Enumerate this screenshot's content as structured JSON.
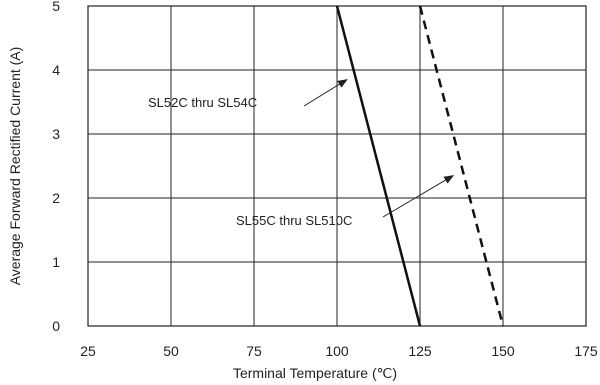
{
  "chart_data": {
    "type": "line",
    "title": "",
    "xlabel": "Terminal Temperature (℃)",
    "ylabel": "Average Forward Rectified Current (A)",
    "xlim": [
      25,
      175
    ],
    "ylim": [
      0,
      5
    ],
    "x_ticks": [
      "25",
      "50",
      "75",
      "100",
      "125",
      "150",
      "175"
    ],
    "y_ticks": [
      "0",
      "1",
      "2",
      "3",
      "4",
      "5"
    ],
    "grid": true,
    "series": [
      {
        "name": "SL52C thru SL54C",
        "style": "solid",
        "color": "#111111",
        "x": [
          100,
          125
        ],
        "y": [
          5,
          0
        ]
      },
      {
        "name": "SL55C thru SL510C",
        "style": "dashed",
        "color": "#111111",
        "x": [
          125,
          150
        ],
        "y": [
          5,
          0
        ]
      }
    ],
    "annotations": [
      {
        "text": "SL52C thru SL54C",
        "series": 0,
        "points_to": [
          103,
          3.85
        ]
      },
      {
        "text": "SL55C thru SL510C",
        "series": 1,
        "points_to": [
          135,
          2.35
        ]
      }
    ]
  }
}
